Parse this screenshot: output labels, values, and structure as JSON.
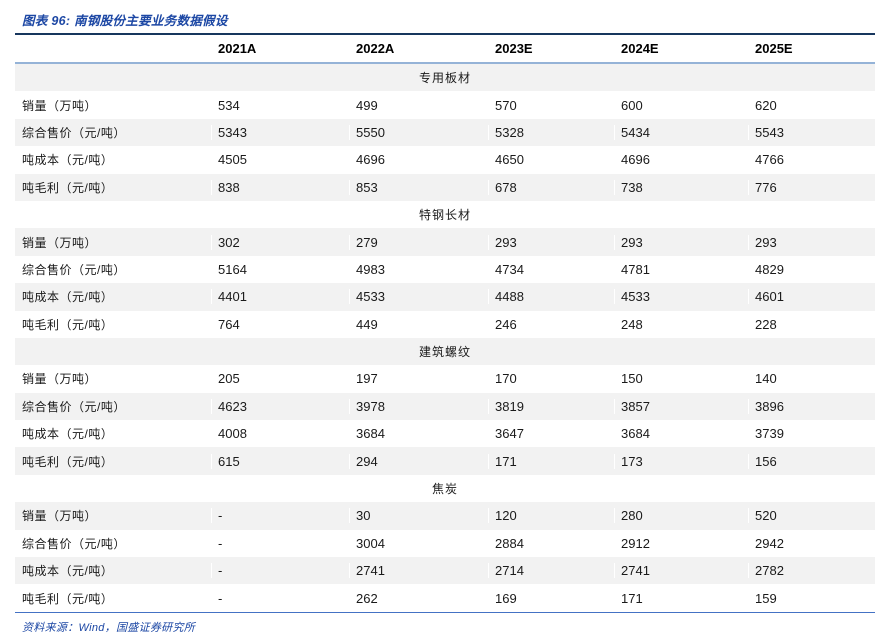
{
  "title": "图表 96: 南钢股份主要业务数据假设",
  "source": "资料来源：Wind，国盛证券研究所",
  "columns": [
    "2021A",
    "2022A",
    "2023E",
    "2024E",
    "2025E"
  ],
  "sections": [
    {
      "name": "专用板材",
      "rows": [
        {
          "label": "销量（万吨）",
          "values": [
            "534",
            "499",
            "570",
            "600",
            "620"
          ]
        },
        {
          "label": "综合售价（元/吨）",
          "values": [
            "5343",
            "5550",
            "5328",
            "5434",
            "5543"
          ]
        },
        {
          "label": "吨成本（元/吨）",
          "values": [
            "4505",
            "4696",
            "4650",
            "4696",
            "4766"
          ]
        },
        {
          "label": "吨毛利（元/吨）",
          "values": [
            "838",
            "853",
            "678",
            "738",
            "776"
          ]
        }
      ]
    },
    {
      "name": "特钢长材",
      "rows": [
        {
          "label": "销量（万吨）",
          "values": [
            "302",
            "279",
            "293",
            "293",
            "293"
          ]
        },
        {
          "label": "综合售价（元/吨）",
          "values": [
            "5164",
            "4983",
            "4734",
            "4781",
            "4829"
          ]
        },
        {
          "label": "吨成本（元/吨）",
          "values": [
            "4401",
            "4533",
            "4488",
            "4533",
            "4601"
          ]
        },
        {
          "label": "吨毛利（元/吨）",
          "values": [
            "764",
            "449",
            "246",
            "248",
            "228"
          ]
        }
      ]
    },
    {
      "name": "建筑螺纹",
      "rows": [
        {
          "label": "销量（万吨）",
          "values": [
            "205",
            "197",
            "170",
            "150",
            "140"
          ]
        },
        {
          "label": "综合售价（元/吨）",
          "values": [
            "4623",
            "3978",
            "3819",
            "3857",
            "3896"
          ]
        },
        {
          "label": "吨成本（元/吨）",
          "values": [
            "4008",
            "3684",
            "3647",
            "3684",
            "3739"
          ]
        },
        {
          "label": "吨毛利（元/吨）",
          "values": [
            "615",
            "294",
            "171",
            "173",
            "156"
          ]
        }
      ]
    },
    {
      "name": "焦炭",
      "rows": [
        {
          "label": "销量（万吨）",
          "values": [
            "-",
            "30",
            "120",
            "280",
            "520"
          ]
        },
        {
          "label": "综合售价（元/吨）",
          "values": [
            "-",
            "3004",
            "2884",
            "2912",
            "2942"
          ]
        },
        {
          "label": "吨成本（元/吨）",
          "values": [
            "-",
            "2741",
            "2714",
            "2741",
            "2782"
          ]
        },
        {
          "label": "吨毛利（元/吨）",
          "values": [
            "-",
            "262",
            "169",
            "171",
            "159"
          ]
        }
      ]
    }
  ],
  "colors": {
    "title_blue": "#1c47a4",
    "top_rule_navy": "#17365d",
    "header_rule_blue": "#95b3d7",
    "bottom_rule_blue": "#4472c4",
    "stripe_gray": "#f2f2f2",
    "text": "#1a1a1a"
  }
}
